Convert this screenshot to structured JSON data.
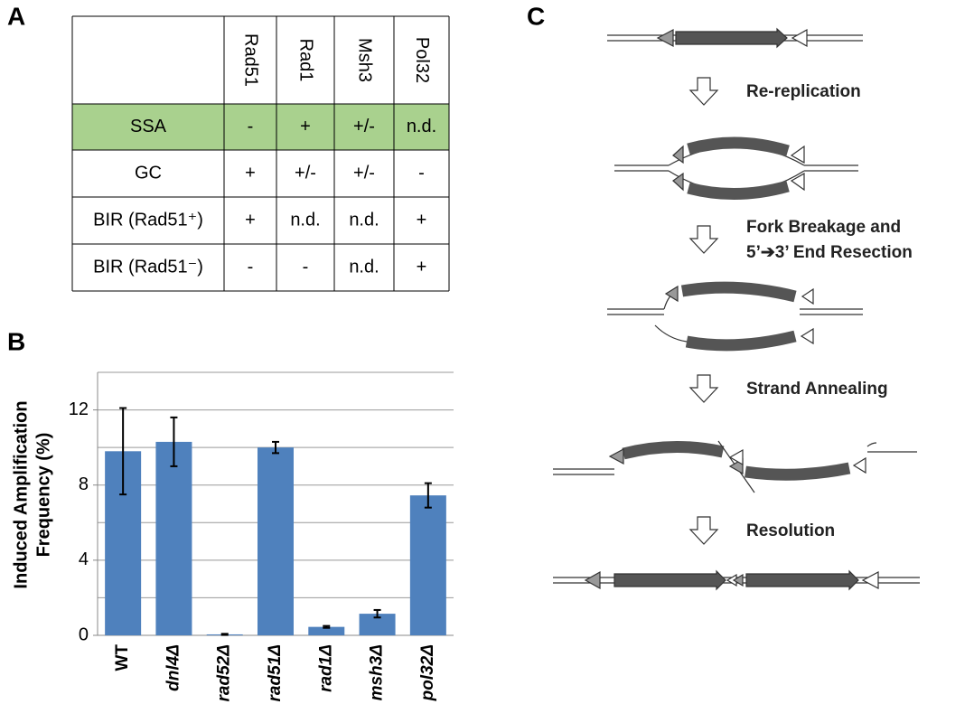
{
  "panel_labels": [
    "A",
    "B",
    "C"
  ],
  "table": {
    "columns": [
      "Rad51",
      "Rad1",
      "Msh3",
      "Pol32"
    ],
    "rows": [
      {
        "cells": [
          "SSA",
          "-",
          "+",
          "+/-",
          "n.d."
        ],
        "fill": "#a9d18e"
      },
      {
        "cells": [
          "GC",
          "+",
          "+/-",
          "+/-",
          "-"
        ]
      },
      {
        "cells": [
          "BIR (Rad51⁺)",
          "+",
          "n.d.",
          "n.d.",
          "+"
        ]
      },
      {
        "cells": [
          "BIR (Rad51⁻)",
          "-",
          "-",
          "n.d.",
          "+"
        ]
      }
    ]
  },
  "chart_data": {
    "type": "bar",
    "y_label": [
      "Induced Amplification",
      "Frequency (%)"
    ],
    "categories": [
      "WT",
      "dnl4Δ",
      "rad52Δ",
      "rad51Δ",
      "rad1Δ",
      "msh3Δ",
      "pol32Δ"
    ],
    "values": [
      9.8,
      10.3,
      0.05,
      10.0,
      0.45,
      1.15,
      7.45
    ],
    "errors": [
      2.3,
      1.3,
      0.03,
      0.3,
      0.05,
      0.2,
      0.65
    ],
    "color": "#4f81bd",
    "ylim": [
      0,
      14
    ],
    "yticks": [
      0,
      4,
      8,
      12
    ],
    "grid_lines": [
      2,
      4,
      6,
      8,
      10,
      12,
      14
    ],
    "grid": true
  },
  "diagram": {
    "steps": [
      [
        "Re-replication"
      ],
      [
        "Fork Breakage and",
        "5’➔3’ End Resection"
      ],
      [
        "Strand Annealing"
      ],
      [
        "Resolution"
      ]
    ]
  }
}
